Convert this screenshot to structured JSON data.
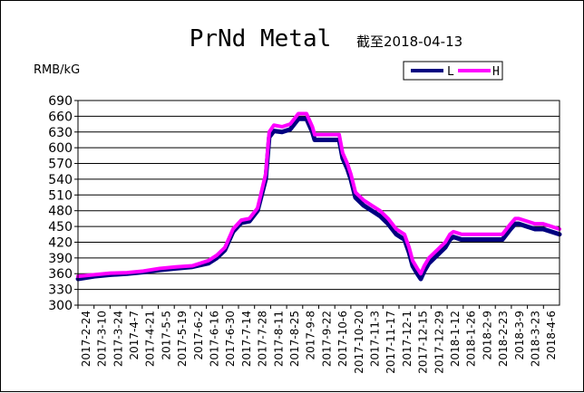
{
  "chart_data": {
    "type": "line",
    "title": "PrNd Metal",
    "subtitle": "截至2018-04-13",
    "ylabel": "RMB/kG",
    "xlabel": "",
    "ylim": [
      300,
      690
    ],
    "yticks": [
      300,
      330,
      360,
      390,
      420,
      450,
      480,
      510,
      540,
      570,
      600,
      630,
      660,
      690
    ],
    "grid": "horizontal",
    "legend": "top-right",
    "x_tick_labels": [
      "2017-2-24",
      "2017-3-10",
      "2017-3-24",
      "2017-4-7",
      "2017-4-21",
      "2017-5-5",
      "2017-5-19",
      "2017-6-2",
      "2017-6-16",
      "2017-6-30",
      "2017-7-14",
      "2017-7-28",
      "2017-8-11",
      "2017-8-25",
      "2017-9-8",
      "2017-9-22",
      "2017-10-6",
      "2017-10-20",
      "2017-11-3",
      "2017-11-17",
      "2017-12-1",
      "2017-12-15",
      "2017-12-29",
      "2018-1-12",
      "2018-1-26",
      "2018-2-9",
      "2018-2-23",
      "2018-3-9",
      "2018-3-23",
      "2018-4-6"
    ],
    "x": [
      "2017-02-24",
      "2017-03-10",
      "2017-03-24",
      "2017-04-07",
      "2017-04-21",
      "2017-05-05",
      "2017-05-19",
      "2017-06-02",
      "2017-06-16",
      "2017-06-23",
      "2017-06-30",
      "2017-07-07",
      "2017-07-14",
      "2017-07-21",
      "2017-07-28",
      "2017-08-04",
      "2017-08-07",
      "2017-08-11",
      "2017-08-18",
      "2017-08-25",
      "2017-09-01",
      "2017-09-08",
      "2017-09-13",
      "2017-09-15",
      "2017-09-22",
      "2017-09-29",
      "2017-10-06",
      "2017-10-09",
      "2017-10-13",
      "2017-10-16",
      "2017-10-20",
      "2017-10-27",
      "2017-11-03",
      "2017-11-10",
      "2017-11-17",
      "2017-11-24",
      "2017-12-01",
      "2017-12-05",
      "2017-12-08",
      "2017-12-12",
      "2017-12-15",
      "2017-12-18",
      "2017-12-22",
      "2017-12-29",
      "2018-01-05",
      "2018-01-09",
      "2018-01-12",
      "2018-01-19",
      "2018-01-26",
      "2018-02-02",
      "2018-02-09",
      "2018-02-16",
      "2018-02-23",
      "2018-03-02",
      "2018-03-06",
      "2018-03-09",
      "2018-03-16",
      "2018-03-23",
      "2018-03-30",
      "2018-04-06",
      "2018-04-13"
    ],
    "series": [
      {
        "name": "L",
        "color": "#000080",
        "values": [
          350,
          355,
          358,
          360,
          363,
          367,
          370,
          373,
          380,
          390,
          405,
          440,
          457,
          460,
          480,
          540,
          620,
          632,
          630,
          635,
          655,
          655,
          630,
          615,
          615,
          615,
          615,
          580,
          560,
          540,
          505,
          490,
          480,
          470,
          455,
          435,
          425,
          400,
          375,
          360,
          350,
          365,
          380,
          395,
          410,
          425,
          430,
          425,
          425,
          425,
          425,
          425,
          425,
          445,
          455,
          455,
          450,
          445,
          445,
          440,
          435
        ]
      },
      {
        "name": "H",
        "color": "#ff00ff",
        "values": [
          355,
          358,
          361,
          362,
          365,
          370,
          373,
          375,
          385,
          395,
          410,
          445,
          462,
          465,
          485,
          550,
          630,
          643,
          640,
          645,
          665,
          665,
          640,
          625,
          625,
          625,
          625,
          590,
          570,
          550,
          515,
          500,
          490,
          480,
          465,
          445,
          435,
          410,
          385,
          370,
          360,
          375,
          390,
          405,
          420,
          435,
          440,
          435,
          435,
          435,
          435,
          435,
          435,
          455,
          465,
          465,
          460,
          455,
          455,
          450,
          445
        ]
      }
    ]
  }
}
